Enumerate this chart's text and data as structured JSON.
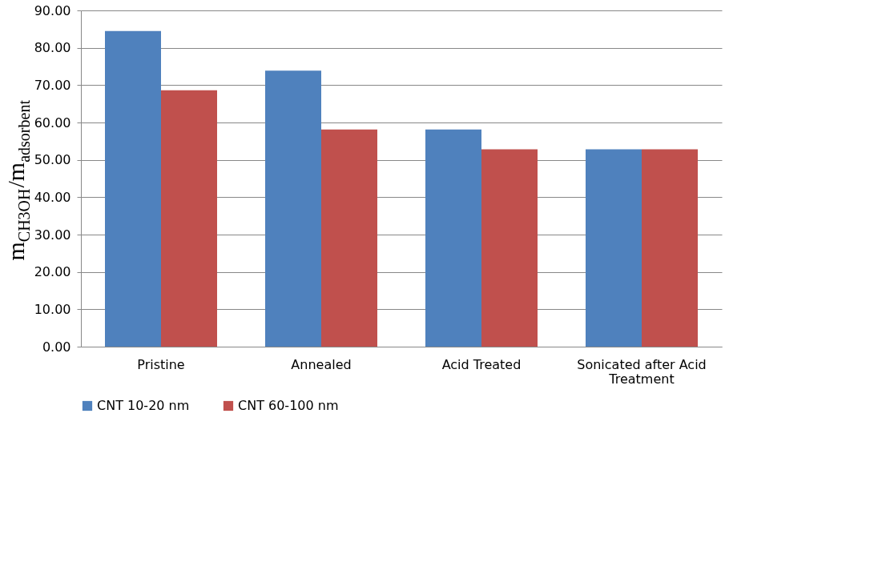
{
  "chart_data": {
    "type": "bar",
    "ylabel": "m$_{CH3OH}$/m$_{adsorbent}$",
    "categories": [
      "Pristine",
      "Annealed",
      "Acid Treated",
      "Sonicated after Acid Treatment"
    ],
    "series": [
      {
        "name": "CNT 10-20 nm",
        "color": "#4f81bd",
        "values": [
          84.5,
          73.9,
          58.1,
          52.8
        ]
      },
      {
        "name": "CNT 60-100 nm",
        "color": "#c0504d",
        "values": [
          68.6,
          58.1,
          52.8,
          52.8
        ]
      }
    ],
    "ylim": [
      0,
      90
    ],
    "yticks": [
      {
        "value": 0,
        "label": "0.00"
      },
      {
        "value": 10,
        "label": "10.00"
      },
      {
        "value": 20,
        "label": "20.00"
      },
      {
        "value": 30,
        "label": "30.00"
      },
      {
        "value": 40,
        "label": "40.00"
      },
      {
        "value": 50,
        "label": "50.00"
      },
      {
        "value": 60,
        "label": "60.00"
      },
      {
        "value": 70,
        "label": "70.00"
      },
      {
        "value": 80,
        "label": "80.00"
      },
      {
        "value": 90,
        "label": "90.00"
      }
    ],
    "grid": "y",
    "legend": "bottom"
  }
}
